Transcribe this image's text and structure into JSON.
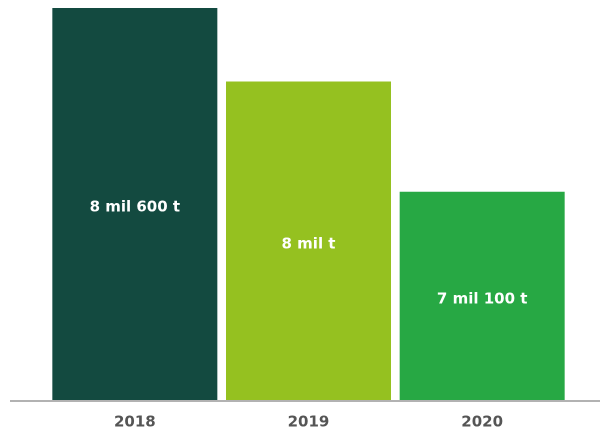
{
  "chart_data": {
    "type": "bar",
    "categories": [
      "2018",
      "2019",
      "2020"
    ],
    "values": [
      8600,
      8000,
      7100
    ],
    "value_labels": [
      "8 mil 600 t",
      "8 mil t",
      "7 mil 100 t"
    ],
    "colors": [
      "#134a40",
      "#95c120",
      "#27a844"
    ],
    "ylim": [
      5400,
      8600
    ]
  }
}
